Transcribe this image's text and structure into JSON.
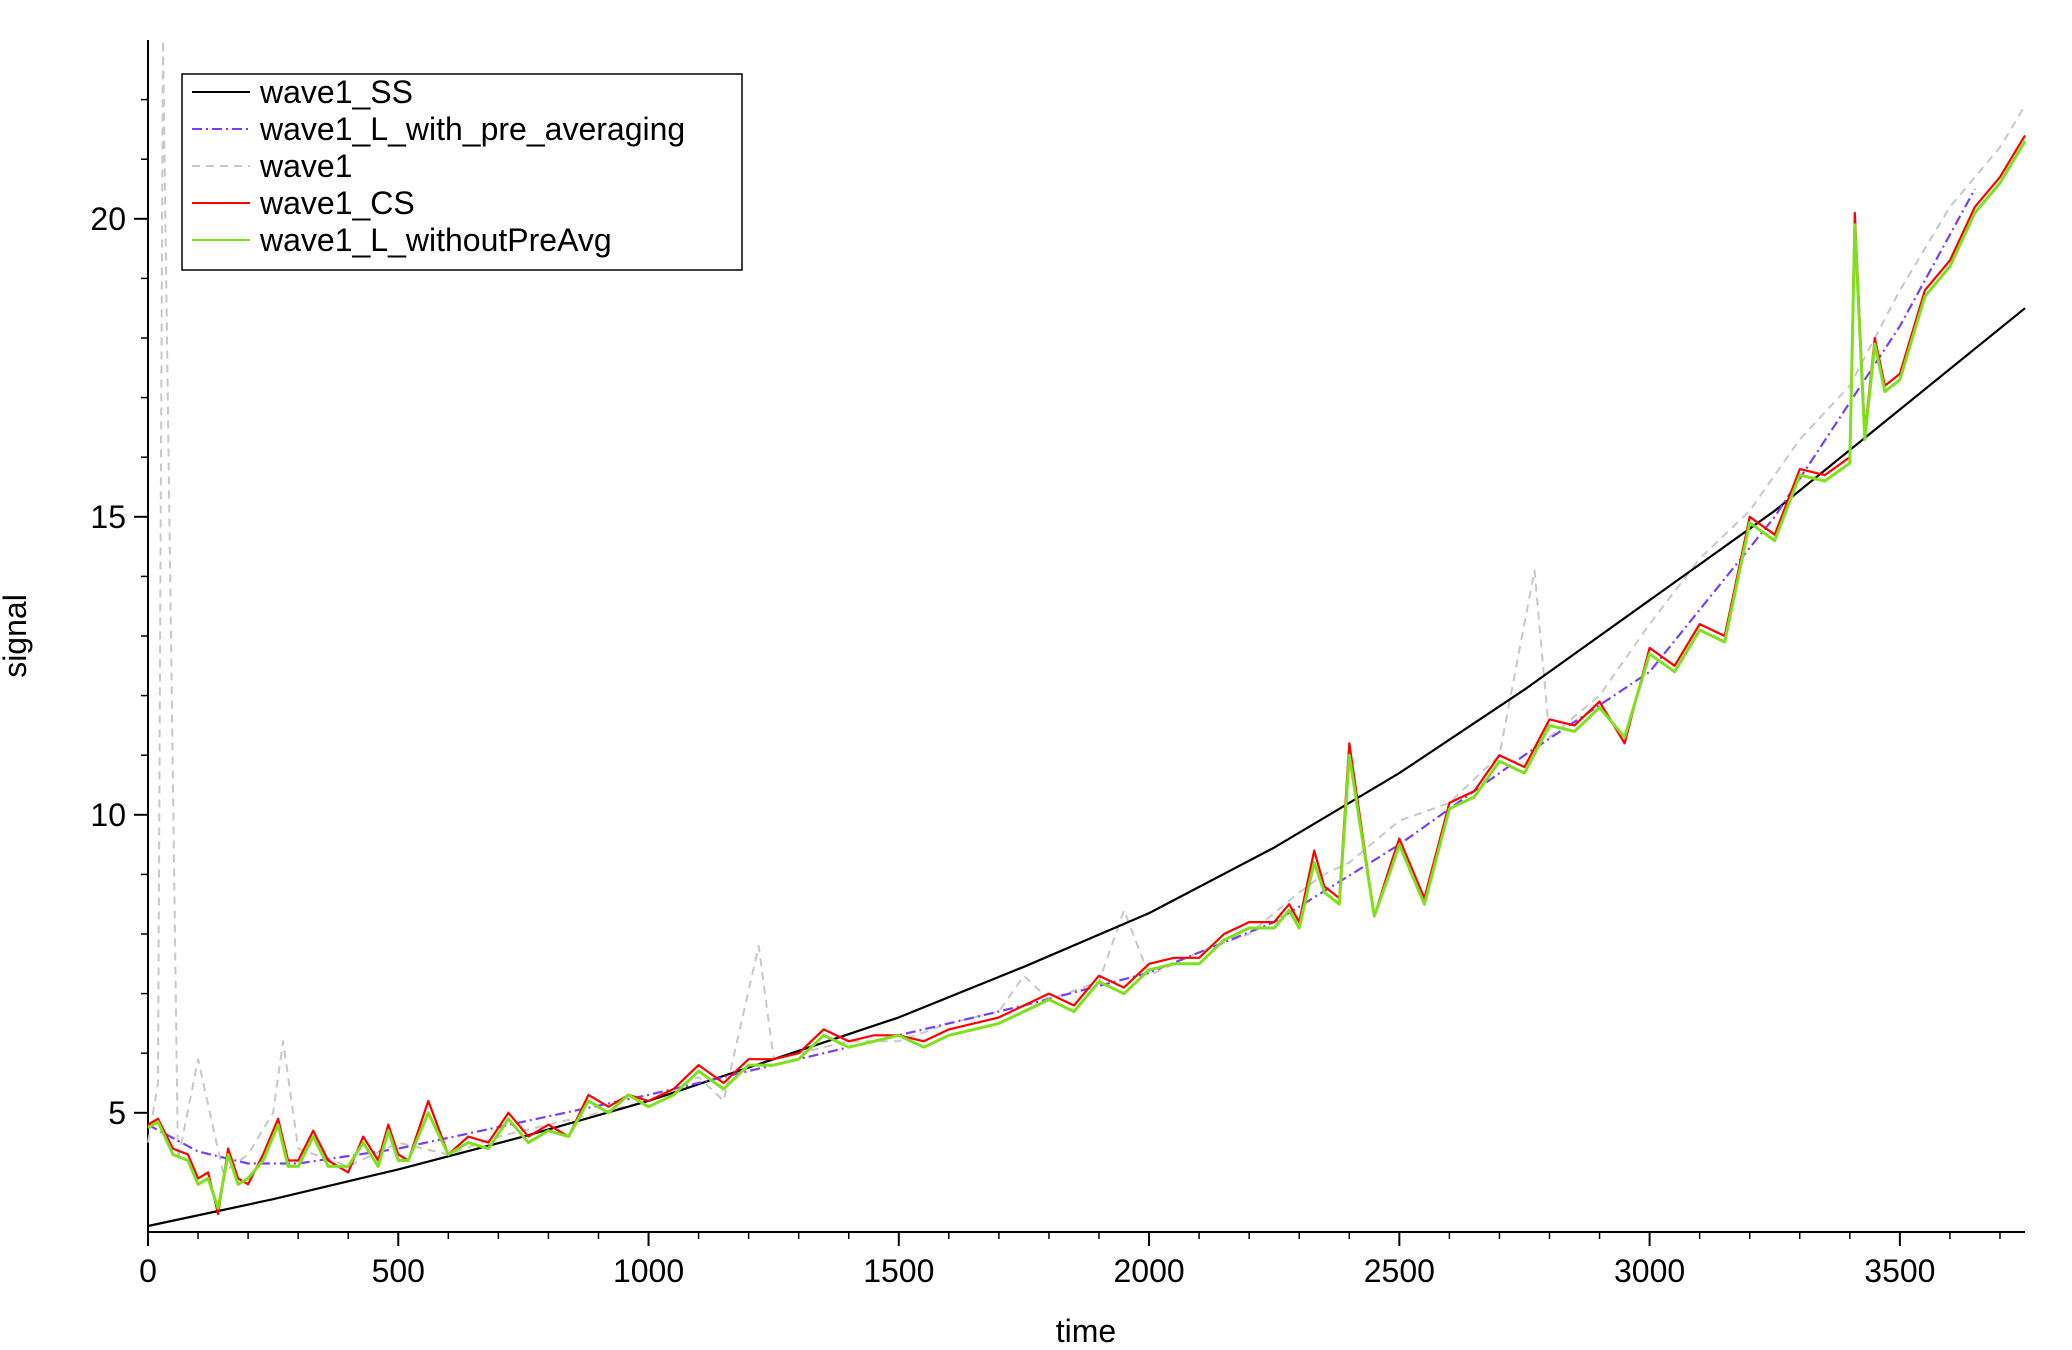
{
  "chart_data": {
    "type": "line",
    "title": "",
    "xlabel": "time",
    "ylabel": "signal",
    "xlim": [
      0,
      3750
    ],
    "ylim": [
      3.0,
      23.0
    ],
    "xticks": [
      0,
      500,
      1000,
      1500,
      2000,
      2500,
      3000,
      3500
    ],
    "yticks": [
      5,
      10,
      15,
      20
    ],
    "xtick_labels": [
      "0",
      "500",
      "1000",
      "1500",
      "2000",
      "2500",
      "3000",
      "3500"
    ],
    "ytick_labels": [
      "5",
      "10",
      "15",
      "20"
    ],
    "legend_position": "top-left",
    "series": [
      {
        "name": "wave1_SS",
        "color": "#000000",
        "style": "solid",
        "x": [
          0,
          250,
          500,
          750,
          1000,
          1250,
          1500,
          1750,
          2000,
          2250,
          2500,
          2750,
          3000,
          3250,
          3500,
          3750
        ],
        "y": [
          3.1,
          3.55,
          4.05,
          4.6,
          5.2,
          5.9,
          6.6,
          7.45,
          8.35,
          9.45,
          10.7,
          12.1,
          13.6,
          15.1,
          16.8,
          18.5
        ]
      },
      {
        "name": "wave1_L_with_pre_averaging",
        "color": "#7a3cff",
        "style": "dashdot",
        "x": [
          0,
          100,
          200,
          300,
          500,
          750,
          1000,
          1250,
          1500,
          1750,
          2000,
          2250,
          2500,
          2750,
          3000,
          3250,
          3500,
          3650
        ],
        "y": [
          4.8,
          4.35,
          4.15,
          4.15,
          4.4,
          4.85,
          5.3,
          5.8,
          6.3,
          6.8,
          7.35,
          8.2,
          9.5,
          11.0,
          12.4,
          15.0,
          18.2,
          20.5
        ]
      },
      {
        "name": "wave1",
        "color": "#c8c8c8",
        "style": "dashed",
        "x": [
          0,
          20,
          30,
          60,
          100,
          150,
          200,
          250,
          270,
          300,
          400,
          500,
          600,
          700,
          800,
          900,
          1000,
          1100,
          1150,
          1220,
          1250,
          1300,
          1400,
          1500,
          1600,
          1700,
          1750,
          1800,
          1900,
          1950,
          2000,
          2100,
          2200,
          2300,
          2350,
          2400,
          2500,
          2600,
          2700,
          2770,
          2800,
          2900,
          3000,
          3100,
          3200,
          3300,
          3400,
          3500,
          3600,
          3700,
          3750
        ],
        "y": [
          4.5,
          5.5,
          23.0,
          4.2,
          5.9,
          4.0,
          4.3,
          5.0,
          6.2,
          4.4,
          4.1,
          4.5,
          4.3,
          4.6,
          4.8,
          5.0,
          5.2,
          5.6,
          5.2,
          7.8,
          5.9,
          6.0,
          6.2,
          6.2,
          6.5,
          6.7,
          7.3,
          6.9,
          7.2,
          8.4,
          7.3,
          7.7,
          8.0,
          8.7,
          9.0,
          9.2,
          9.9,
          10.2,
          11.0,
          14.1,
          11.3,
          12.0,
          13.2,
          14.3,
          15.1,
          16.3,
          17.2,
          18.8,
          20.2,
          21.2,
          21.9
        ]
      },
      {
        "name": "wave1_CS",
        "color": "#ff0000",
        "style": "solid",
        "x": [
          0,
          20,
          50,
          80,
          100,
          120,
          140,
          160,
          180,
          200,
          230,
          260,
          280,
          300,
          330,
          360,
          400,
          430,
          460,
          480,
          500,
          520,
          560,
          600,
          640,
          680,
          720,
          760,
          800,
          840,
          880,
          920,
          960,
          1000,
          1050,
          1100,
          1150,
          1200,
          1250,
          1300,
          1350,
          1400,
          1450,
          1500,
          1550,
          1600,
          1650,
          1700,
          1750,
          1800,
          1850,
          1900,
          1950,
          2000,
          2050,
          2100,
          2150,
          2200,
          2250,
          2280,
          2300,
          2330,
          2350,
          2380,
          2400,
          2450,
          2480,
          2500,
          2550,
          2600,
          2650,
          2700,
          2750,
          2800,
          2850,
          2900,
          2950,
          3000,
          3050,
          3100,
          3150,
          3200,
          3250,
          3300,
          3350,
          3400,
          3410,
          3430,
          3450,
          3470,
          3500,
          3550,
          3600,
          3650,
          3700,
          3750
        ],
        "y": [
          4.8,
          4.9,
          4.4,
          4.3,
          3.9,
          4.0,
          3.3,
          4.4,
          3.9,
          3.8,
          4.3,
          4.9,
          4.2,
          4.2,
          4.7,
          4.2,
          4.0,
          4.6,
          4.2,
          4.8,
          4.3,
          4.2,
          5.2,
          4.3,
          4.6,
          4.5,
          5.0,
          4.6,
          4.8,
          4.6,
          5.3,
          5.1,
          5.3,
          5.2,
          5.4,
          5.8,
          5.5,
          5.9,
          5.9,
          6.0,
          6.4,
          6.2,
          6.3,
          6.3,
          6.2,
          6.4,
          6.5,
          6.6,
          6.8,
          7.0,
          6.8,
          7.3,
          7.1,
          7.5,
          7.6,
          7.6,
          8.0,
          8.2,
          8.2,
          8.5,
          8.2,
          9.4,
          8.8,
          8.6,
          11.2,
          8.3,
          9.1,
          9.6,
          8.6,
          10.2,
          10.4,
          11.0,
          10.8,
          11.6,
          11.5,
          11.9,
          11.2,
          12.8,
          12.5,
          13.2,
          13.0,
          15.0,
          14.7,
          15.8,
          15.7,
          16.0,
          20.1,
          16.4,
          18.0,
          17.2,
          17.4,
          18.8,
          19.3,
          20.2,
          20.7,
          21.4
        ]
      },
      {
        "name": "wave1_L_withoutPreAvg",
        "color": "#7fe01c",
        "style": "solid",
        "x": [
          0,
          20,
          50,
          80,
          100,
          120,
          140,
          160,
          180,
          200,
          230,
          260,
          280,
          300,
          330,
          360,
          400,
          430,
          460,
          480,
          500,
          520,
          560,
          600,
          640,
          680,
          720,
          760,
          800,
          840,
          880,
          920,
          960,
          1000,
          1050,
          1100,
          1150,
          1200,
          1250,
          1300,
          1350,
          1400,
          1450,
          1500,
          1550,
          1600,
          1650,
          1700,
          1750,
          1800,
          1850,
          1900,
          1950,
          2000,
          2050,
          2100,
          2150,
          2200,
          2250,
          2280,
          2300,
          2330,
          2350,
          2380,
          2400,
          2450,
          2480,
          2500,
          2550,
          2600,
          2650,
          2700,
          2750,
          2800,
          2850,
          2900,
          2950,
          3000,
          3050,
          3100,
          3150,
          3200,
          3250,
          3300,
          3350,
          3400,
          3410,
          3430,
          3450,
          3470,
          3500,
          3550,
          3600,
          3650,
          3700,
          3750
        ],
        "y": [
          4.75,
          4.85,
          4.3,
          4.2,
          3.8,
          3.9,
          3.4,
          4.3,
          3.8,
          3.9,
          4.2,
          4.8,
          4.1,
          4.1,
          4.6,
          4.1,
          4.1,
          4.5,
          4.1,
          4.7,
          4.2,
          4.2,
          5.0,
          4.3,
          4.5,
          4.4,
          4.9,
          4.5,
          4.7,
          4.6,
          5.2,
          5.0,
          5.3,
          5.1,
          5.3,
          5.7,
          5.4,
          5.8,
          5.8,
          5.9,
          6.3,
          6.1,
          6.2,
          6.3,
          6.1,
          6.3,
          6.4,
          6.5,
          6.7,
          6.9,
          6.7,
          7.2,
          7.0,
          7.4,
          7.5,
          7.5,
          7.9,
          8.1,
          8.1,
          8.4,
          8.1,
          9.2,
          8.7,
          8.5,
          11.0,
          8.3,
          9.0,
          9.5,
          8.5,
          10.1,
          10.3,
          10.9,
          10.7,
          11.5,
          11.4,
          11.8,
          11.3,
          12.7,
          12.4,
          13.1,
          12.9,
          14.9,
          14.6,
          15.7,
          15.6,
          15.9,
          19.9,
          16.3,
          17.9,
          17.1,
          17.3,
          18.7,
          19.2,
          20.1,
          20.6,
          21.3
        ]
      }
    ]
  }
}
